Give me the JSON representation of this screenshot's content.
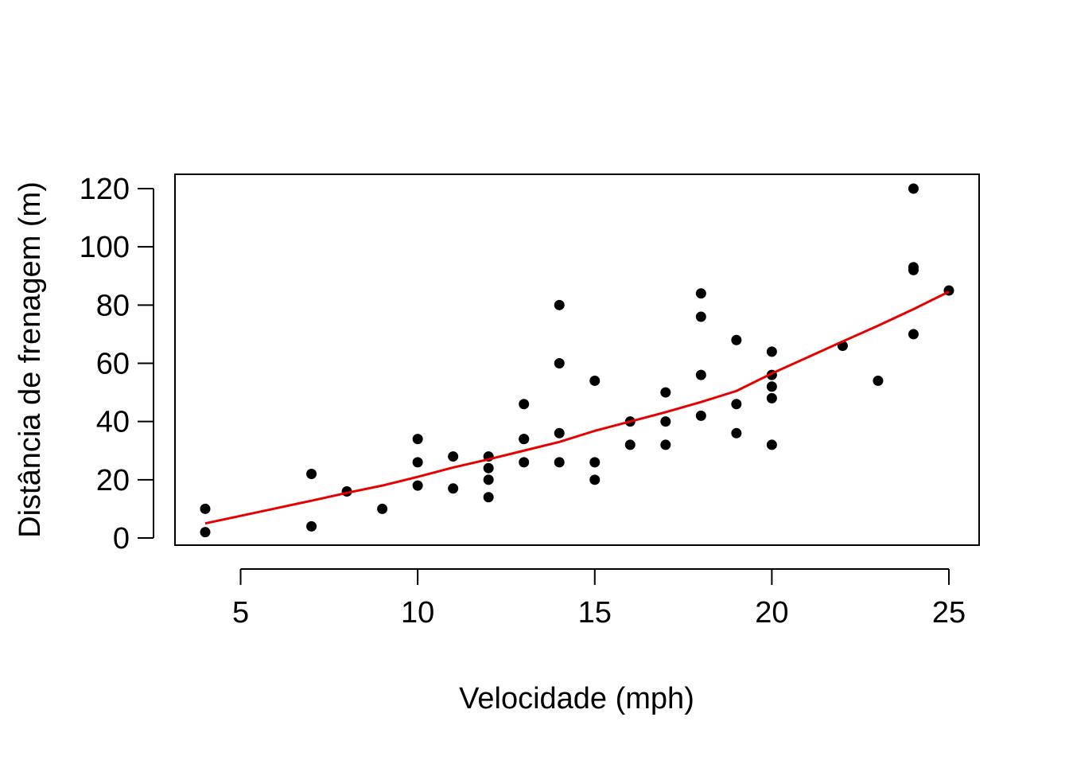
{
  "chart_data": {
    "type": "scatter",
    "title": "",
    "xlabel": "Velocidade (mph)",
    "ylabel": "Distância de frenagem (m)",
    "xlim": [
      4,
      25
    ],
    "ylim": [
      0,
      120
    ],
    "x_ticks": [
      5,
      10,
      15,
      20,
      25
    ],
    "y_ticks": [
      0,
      20,
      40,
      60,
      80,
      100,
      120
    ],
    "grid": false,
    "points": [
      [
        4,
        2
      ],
      [
        4,
        10
      ],
      [
        7,
        4
      ],
      [
        7,
        22
      ],
      [
        8,
        16
      ],
      [
        9,
        10
      ],
      [
        10,
        18
      ],
      [
        10,
        26
      ],
      [
        10,
        34
      ],
      [
        11,
        17
      ],
      [
        11,
        28
      ],
      [
        12,
        14
      ],
      [
        12,
        20
      ],
      [
        12,
        24
      ],
      [
        12,
        28
      ],
      [
        13,
        26
      ],
      [
        13,
        34
      ],
      [
        13,
        34
      ],
      [
        13,
        46
      ],
      [
        14,
        26
      ],
      [
        14,
        36
      ],
      [
        14,
        60
      ],
      [
        14,
        80
      ],
      [
        15,
        20
      ],
      [
        15,
        26
      ],
      [
        15,
        54
      ],
      [
        16,
        32
      ],
      [
        16,
        40
      ],
      [
        17,
        32
      ],
      [
        17,
        40
      ],
      [
        17,
        50
      ],
      [
        18,
        42
      ],
      [
        18,
        56
      ],
      [
        18,
        76
      ],
      [
        18,
        84
      ],
      [
        19,
        36
      ],
      [
        19,
        46
      ],
      [
        19,
        68
      ],
      [
        20,
        32
      ],
      [
        20,
        48
      ],
      [
        20,
        52
      ],
      [
        20,
        56
      ],
      [
        20,
        64
      ],
      [
        22,
        66
      ],
      [
        23,
        54
      ],
      [
        24,
        70
      ],
      [
        24,
        92
      ],
      [
        24,
        93
      ],
      [
        24,
        120
      ],
      [
        25,
        85
      ]
    ],
    "point_color": "#000000",
    "smooth_line": {
      "color": "#e60000",
      "x": [
        4,
        5,
        6,
        7,
        8,
        9,
        10,
        11,
        12,
        13,
        14,
        15,
        16,
        17,
        18,
        19,
        20,
        21,
        22,
        23,
        24,
        25
      ],
      "y": [
        5,
        7.6,
        10.2,
        12.8,
        15.5,
        18,
        21,
        24.2,
        27,
        30,
        33,
        36.8,
        40,
        43.2,
        46.7,
        50.5,
        56.5,
        62,
        67.5,
        72.9,
        78.6,
        84.6
      ]
    }
  }
}
